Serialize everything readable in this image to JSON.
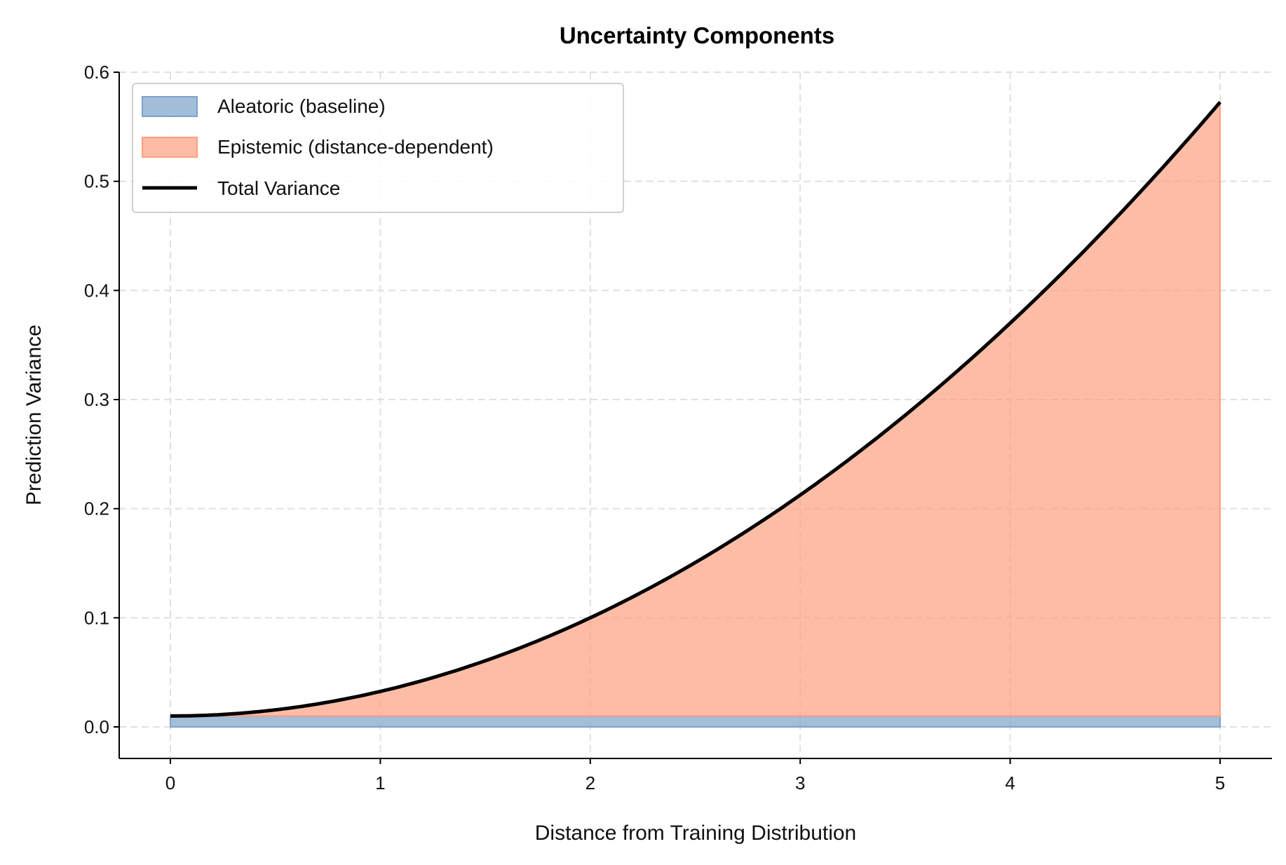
{
  "chart_data": {
    "type": "area",
    "title": "Uncertainty Components",
    "xlabel": "Distance from Training Distribution",
    "ylabel": "Prediction Variance",
    "xlim": [
      -0.25,
      5.25
    ],
    "ylim": [
      -0.028,
      0.6
    ],
    "xticks": [
      0,
      1,
      2,
      3,
      4,
      5
    ],
    "xtick_labels": [
      "0",
      "1",
      "2",
      "3",
      "4",
      "5"
    ],
    "yticks": [
      0.0,
      0.1,
      0.2,
      0.3,
      0.4,
      0.5,
      0.6
    ],
    "ytick_labels": [
      "0.0",
      "0.1",
      "0.2",
      "0.3",
      "0.4",
      "0.5",
      "0.6"
    ],
    "grid": true,
    "legend_position": "top-left",
    "x_range": [
      0,
      5
    ],
    "aleatoric": 0.01,
    "epistemic_coefficient": 0.0225,
    "series": [
      {
        "name": "Aleatoric (baseline)",
        "kind": "fill",
        "color": "#7ba3c9",
        "description_values": {
          "x": [
            0,
            5
          ],
          "y": [
            0.01,
            0.01
          ]
        }
      },
      {
        "name": "Epistemic (distance-dependent)",
        "kind": "fill",
        "color": "#fc9f80",
        "sample_x": [
          0,
          1,
          2,
          3,
          4,
          5
        ],
        "sample_y_top": [
          0.01,
          0.0325,
          0.1,
          0.2125,
          0.37,
          0.5725
        ]
      },
      {
        "name": "Total Variance",
        "kind": "line",
        "color": "#000000",
        "sample_x": [
          0,
          1,
          2,
          3,
          4,
          5
        ],
        "sample_y": [
          0.01,
          0.0325,
          0.1,
          0.2125,
          0.37,
          0.5725
        ]
      }
    ]
  }
}
